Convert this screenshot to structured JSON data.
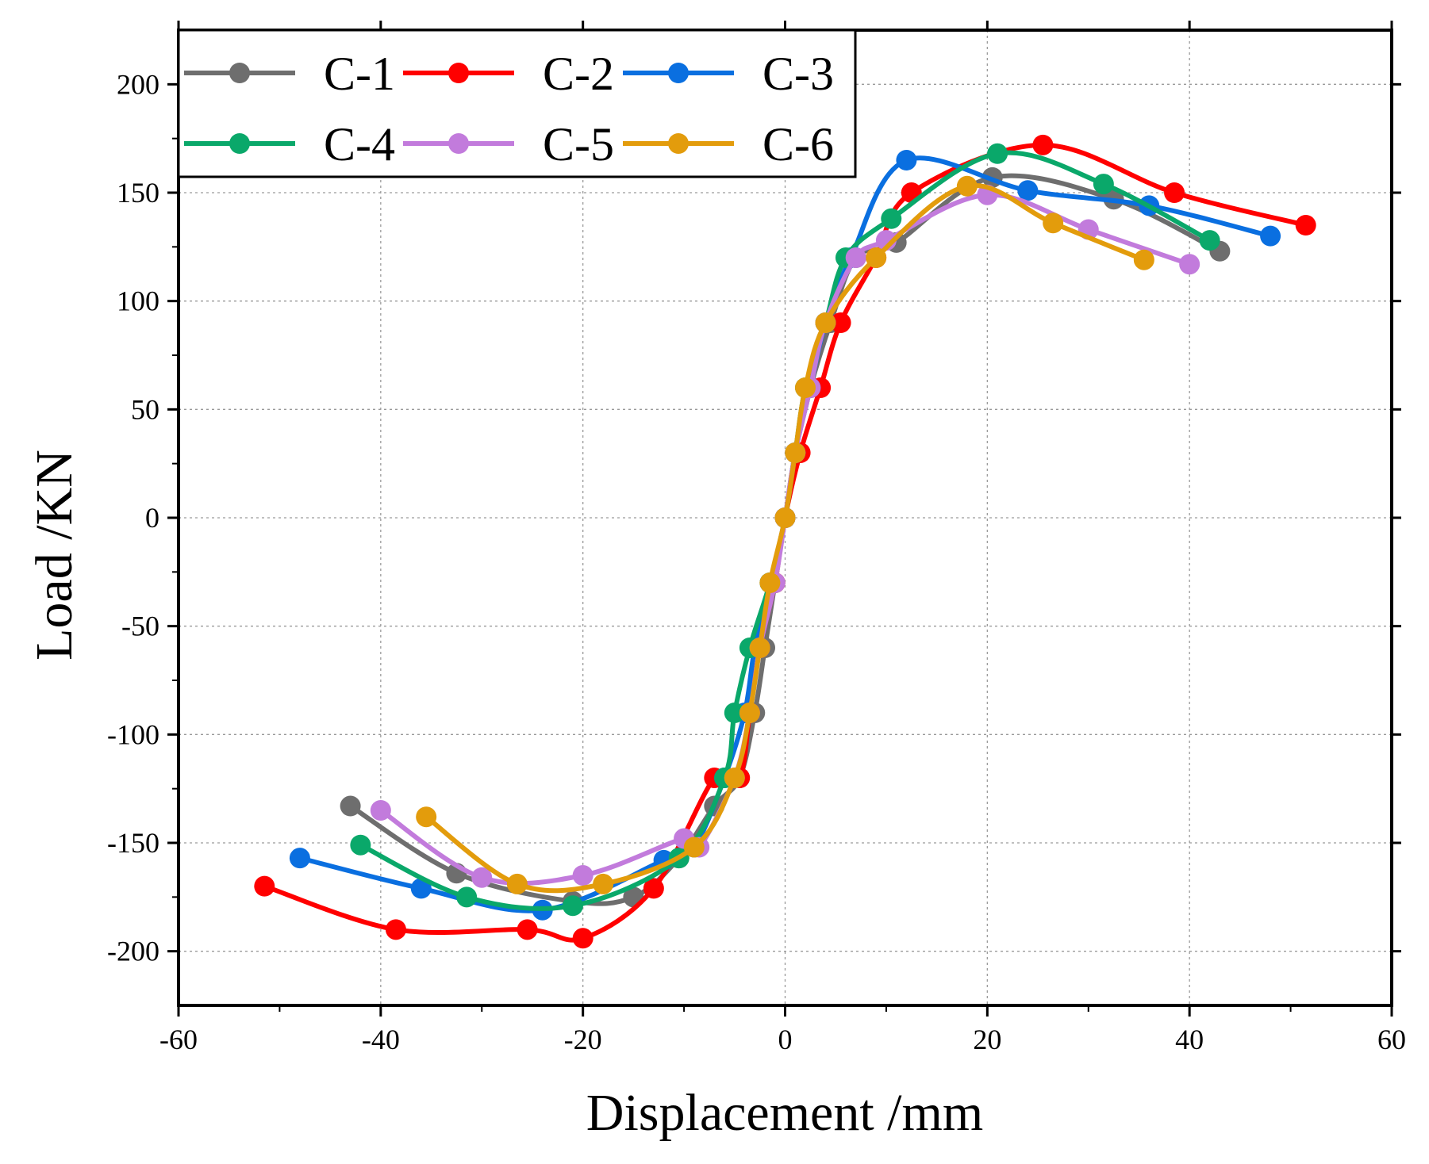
{
  "chart_data": {
    "type": "line",
    "title": "",
    "xlabel": "Displacement /mm",
    "ylabel": "Load /KN",
    "xlim": [
      -60,
      60
    ],
    "ylim": [
      -225,
      225
    ],
    "xticks": [
      -60,
      -40,
      -20,
      0,
      20,
      40,
      60
    ],
    "yticks": [
      -200,
      -150,
      -100,
      -50,
      0,
      50,
      100,
      150,
      200
    ],
    "grid": true,
    "legend_position": "top-left",
    "series": [
      {
        "name": "C-1",
        "color": "#6e6e6e",
        "points": [
          [
            -43,
            -133
          ],
          [
            -32.5,
            -164
          ],
          [
            -21,
            -177
          ],
          [
            -15,
            -175
          ],
          [
            -10.5,
            -157
          ],
          [
            -7,
            -133
          ],
          [
            -4.5,
            -120
          ],
          [
            -3,
            -90
          ],
          [
            -2,
            -60
          ],
          [
            -1,
            -30
          ],
          [
            0,
            0
          ],
          [
            1,
            30
          ],
          [
            2.5,
            60
          ],
          [
            4.5,
            90
          ],
          [
            7,
            120
          ],
          [
            11,
            127
          ],
          [
            20.5,
            157
          ],
          [
            32.5,
            147
          ],
          [
            43,
            123
          ]
        ]
      },
      {
        "name": "C-2",
        "color": "#ff0000",
        "points": [
          [
            -51.5,
            -170
          ],
          [
            -38.5,
            -190
          ],
          [
            -25.5,
            -190
          ],
          [
            -20,
            -194
          ],
          [
            -13,
            -171
          ],
          [
            -7,
            -120
          ],
          [
            -4.5,
            -120
          ],
          [
            -3.5,
            -90
          ],
          [
            -2.5,
            -60
          ],
          [
            -1,
            -30
          ],
          [
            0,
            0
          ],
          [
            1.5,
            30
          ],
          [
            3.5,
            60
          ],
          [
            5.5,
            90
          ],
          [
            9,
            120
          ],
          [
            12.5,
            150
          ],
          [
            25.5,
            172
          ],
          [
            38.5,
            150
          ],
          [
            51.5,
            135
          ]
        ]
      },
      {
        "name": "C-3",
        "color": "#0a6fe0",
        "points": [
          [
            -48,
            -157
          ],
          [
            -36,
            -171
          ],
          [
            -24,
            -181
          ],
          [
            -12,
            -158
          ],
          [
            -9,
            -152
          ],
          [
            -6,
            -120
          ],
          [
            -4,
            -90
          ],
          [
            -3,
            -60
          ],
          [
            -1.5,
            -30
          ],
          [
            0,
            0
          ],
          [
            1,
            30
          ],
          [
            2.5,
            60
          ],
          [
            4,
            90
          ],
          [
            6.5,
            120
          ],
          [
            12,
            165
          ],
          [
            24,
            151
          ],
          [
            36,
            144
          ],
          [
            48,
            130
          ]
        ]
      },
      {
        "name": "C-4",
        "color": "#0aa86a",
        "points": [
          [
            -42,
            -151
          ],
          [
            -31.5,
            -175
          ],
          [
            -21,
            -179
          ],
          [
            -10.5,
            -157
          ],
          [
            -6,
            -120
          ],
          [
            -5,
            -90
          ],
          [
            -3.5,
            -60
          ],
          [
            -1.5,
            -30
          ],
          [
            0,
            0
          ],
          [
            1,
            30
          ],
          [
            2,
            60
          ],
          [
            4,
            90
          ],
          [
            6,
            120
          ],
          [
            10.5,
            138
          ],
          [
            21,
            168
          ],
          [
            31.5,
            154
          ],
          [
            42,
            128
          ]
        ]
      },
      {
        "name": "C-5",
        "color": "#c27bdc",
        "points": [
          [
            -40,
            -135
          ],
          [
            -30,
            -166
          ],
          [
            -20,
            -165
          ],
          [
            -10,
            -148
          ],
          [
            -8.5,
            -152
          ],
          [
            -5,
            -120
          ],
          [
            -3.5,
            -90
          ],
          [
            -2.5,
            -60
          ],
          [
            -1,
            -30
          ],
          [
            0,
            0
          ],
          [
            1,
            30
          ],
          [
            2.5,
            60
          ],
          [
            4,
            90
          ],
          [
            7,
            120
          ],
          [
            10,
            128
          ],
          [
            20,
            149
          ],
          [
            30,
            133
          ],
          [
            40,
            117
          ]
        ]
      },
      {
        "name": "C-6",
        "color": "#e39c0c",
        "points": [
          [
            -35.5,
            -138
          ],
          [
            -26.5,
            -169
          ],
          [
            -18,
            -169
          ],
          [
            -9,
            -152
          ],
          [
            -5,
            -120
          ],
          [
            -3.5,
            -90
          ],
          [
            -2.5,
            -60
          ],
          [
            -1.5,
            -30
          ],
          [
            0,
            0
          ],
          [
            1,
            30
          ],
          [
            2,
            60
          ],
          [
            4,
            90
          ],
          [
            9,
            120
          ],
          [
            18,
            153
          ],
          [
            26.5,
            136
          ],
          [
            35.5,
            119
          ]
        ]
      }
    ]
  }
}
